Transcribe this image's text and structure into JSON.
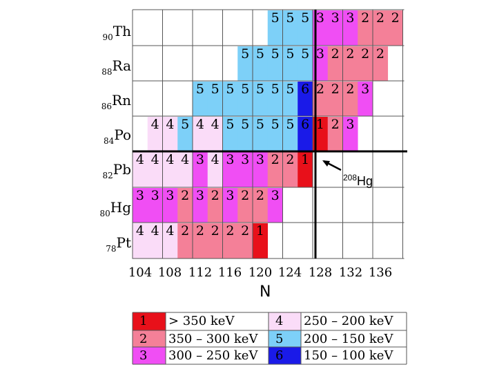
{
  "colors": {
    "1": "#e8101a",
    "2": "#f48098",
    "3": "#f04ef4",
    "4": "#fadcf8",
    "5": "#7dd0f8",
    "6": "#1a1ae8",
    "grid": "#555555"
  },
  "rows": [
    {
      "z": "90",
      "el": "Th"
    },
    {
      "z": "88",
      "el": "Ra"
    },
    {
      "z": "86",
      "el": "Rn"
    },
    {
      "z": "84",
      "el": "Po"
    },
    {
      "z": "82",
      "el": "Pb"
    },
    {
      "z": "80",
      "el": "Hg"
    },
    {
      "z": "78",
      "el": "Pt"
    }
  ],
  "n_ticks": [
    "104",
    "108",
    "112",
    "116",
    "120",
    "124",
    "128",
    "132",
    "136"
  ],
  "n_axis_label": "N",
  "cells": [
    [
      "",
      "",
      "",
      "",
      "",
      "",
      "",
      "",
      "",
      "5",
      "5",
      "5",
      "3",
      "3",
      "3",
      "2",
      "2",
      "2"
    ],
    [
      "",
      "",
      "",
      "",
      "",
      "",
      "",
      "5",
      "5",
      "5",
      "5",
      "5",
      "3",
      "2",
      "2",
      "2",
      "2",
      ""
    ],
    [
      "",
      "",
      "",
      "",
      "5",
      "5",
      "5",
      "5",
      "5",
      "5",
      "5",
      "6",
      "2",
      "2",
      "2",
      "3",
      "",
      ""
    ],
    [
      "",
      "4",
      "4",
      "5",
      "4",
      "4",
      "5",
      "5",
      "5",
      "5",
      "5",
      "6",
      "1",
      "2",
      "3",
      "",
      "",
      ""
    ],
    [
      "4",
      "4",
      "4",
      "4",
      "3",
      "4",
      "3",
      "3",
      "3",
      "2",
      "2",
      "1",
      "",
      "",
      "",
      "",
      "",
      ""
    ],
    [
      "3",
      "3",
      "3",
      "2",
      "3",
      "2",
      "3",
      "2",
      "2",
      "3",
      "",
      "",
      "",
      "",
      "",
      "",
      "",
      ""
    ],
    [
      "4",
      "4",
      "4",
      "2",
      "2",
      "2",
      "2",
      "2",
      "1",
      "",
      "",
      "",
      "",
      "",
      "",
      "",
      "",
      ""
    ]
  ],
  "annotation": {
    "mass": "208",
    "el": "Hg"
  },
  "legend": [
    {
      "code": "1",
      "range": "> 350 keV"
    },
    {
      "code": "2",
      "range": "350 – 300 keV"
    },
    {
      "code": "3",
      "range": "300 – 250 keV"
    },
    {
      "code": "4",
      "range": "250 – 200 keV"
    },
    {
      "code": "5",
      "range": "200 – 150 keV"
    },
    {
      "code": "6",
      "range": "150 – 100 keV"
    }
  ]
}
